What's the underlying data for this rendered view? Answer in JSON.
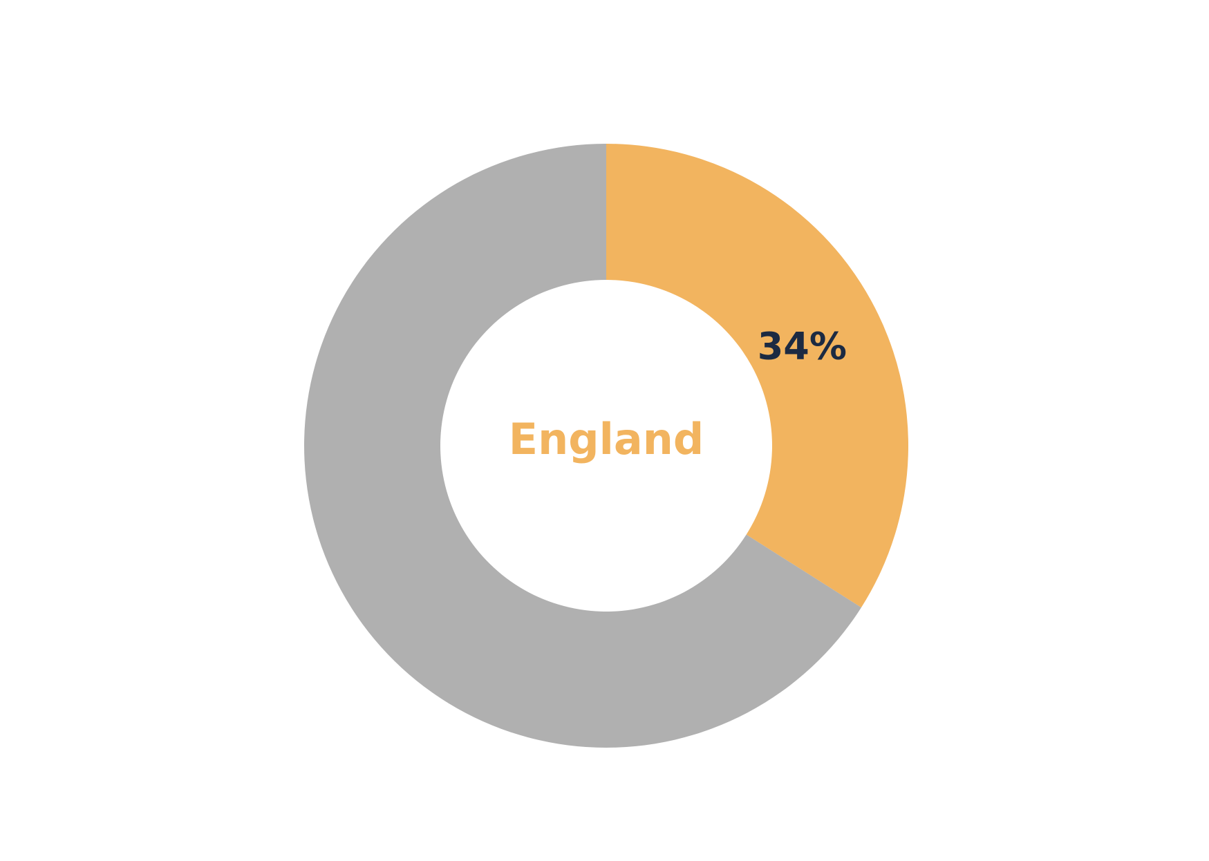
{
  "chart_data": {
    "type": "pie",
    "style": "donut",
    "center_label": "England",
    "slices": [
      {
        "value": 34,
        "label": "34%",
        "color": "#F2B45F",
        "label_color": "#1C2A42"
      },
      {
        "value": 66,
        "label": "",
        "color": "#B0B0B0"
      }
    ]
  },
  "colors": {
    "accent": "#F2B45F",
    "neutral": "#B0B0B0",
    "label_dark": "#1C2A42",
    "background": "#FFFFFF"
  }
}
